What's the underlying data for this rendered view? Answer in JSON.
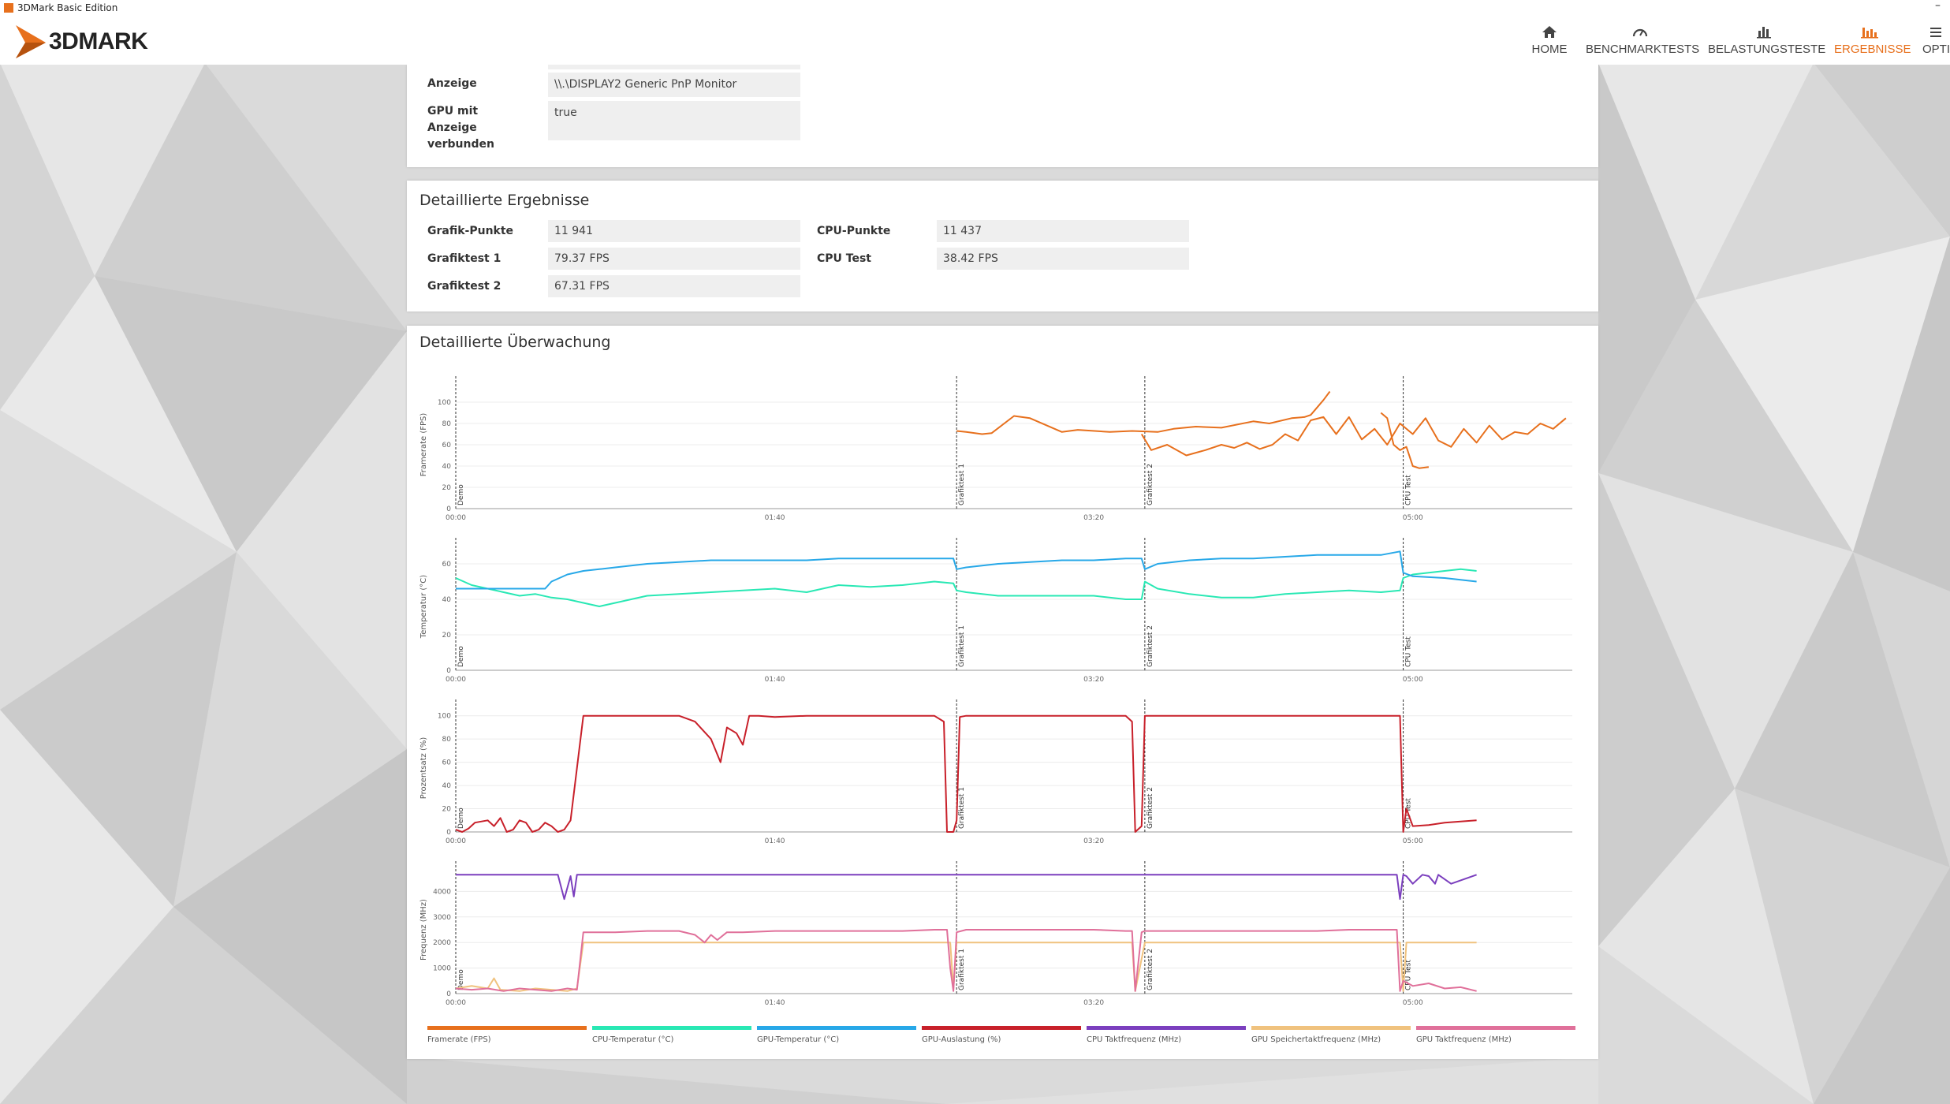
{
  "window": {
    "title": "3DMark Basic Edition",
    "minimize": "–"
  },
  "brand": {
    "name": "3DMARK"
  },
  "nav": [
    {
      "label": "HOME",
      "icon": "home-icon"
    },
    {
      "label": "BENCHMARKTESTS",
      "icon": "gauge-icon"
    },
    {
      "label": "BELASTUNGSTESTE",
      "icon": "bar-chart-icon"
    },
    {
      "label": "ERGEBNISSE",
      "icon": "results-chart-icon",
      "active": true
    },
    {
      "label": "OPTI",
      "icon": "options-icon"
    }
  ],
  "colors": {
    "accent": "#e7701d"
  },
  "display_info": {
    "rows": [
      {
        "label": "Anzeige",
        "value": "\\\\.\\DISPLAY2 Generic PnP Monitor"
      },
      {
        "label": "GPU mit Anzeige verbunden",
        "value": "true"
      }
    ]
  },
  "detailed_results": {
    "title": "Detaillierte Ergebnisse",
    "left": [
      {
        "label": "Grafik-Punkte",
        "value": "11 941"
      },
      {
        "label": "Grafiktest 1",
        "value": "79.37 FPS"
      },
      {
        "label": "Grafiktest 2",
        "value": "67.31 FPS"
      }
    ],
    "right": [
      {
        "label": "CPU-Punkte",
        "value": "11 437"
      },
      {
        "label": "CPU Test",
        "value": "38.42 FPS"
      }
    ]
  },
  "monitoring": {
    "title": "Detaillierte Überwachung",
    "x_ticks": [
      "00:00",
      "01:40",
      "03:20",
      "05:00"
    ],
    "markers": [
      "Demo",
      "Grafiktest 1",
      "Grafiktest 2",
      "CPU Test"
    ],
    "legend": [
      {
        "label": "Framerate (FPS)",
        "color": "#e7701d"
      },
      {
        "label": "CPU-Temperatur (°C)",
        "color": "#29e8b4"
      },
      {
        "label": "GPU-Temperatur (°C)",
        "color": "#27a8e8"
      },
      {
        "label": "GPU-Auslastung (%)",
        "color": "#c8202a"
      },
      {
        "label": "CPU Taktfrequenz (MHz)",
        "color": "#7b3fbe"
      },
      {
        "label": "GPU Speichertaktfrequenz (MHz)",
        "color": "#f0c27e"
      },
      {
        "label": "GPU Taktfrequenz (MHz)",
        "color": "#e0709a"
      }
    ]
  },
  "chart_data": [
    {
      "type": "line",
      "ylabel": "Framerate (FPS)",
      "ylim": [
        0,
        120
      ],
      "yticks": [
        0,
        20,
        40,
        60,
        80,
        100
      ],
      "xlim": [
        0,
        350
      ],
      "grid": true,
      "series": [
        {
          "name": "Framerate (FPS)",
          "color": "#e7701d",
          "x": [
            157,
            160,
            165,
            168,
            175,
            180,
            190,
            195,
            205,
            212,
            220,
            225,
            232,
            240,
            250,
            255,
            262,
            266,
            268,
            270,
            272,
            274
          ],
          "y": [
            73,
            72,
            70,
            71,
            87,
            85,
            72,
            74,
            72,
            73,
            72,
            75,
            77,
            76,
            82,
            80,
            85,
            86,
            88,
            95,
            102,
            110
          ]
        },
        {
          "name": "Framerate (FPS)",
          "color": "#e7701d",
          "x": [
            215,
            218,
            223,
            229,
            235,
            240,
            244,
            248,
            252,
            256,
            260,
            264,
            268,
            272,
            276,
            280,
            284,
            288,
            292,
            296,
            300,
            304,
            308,
            312,
            316,
            320,
            324,
            328,
            332,
            336,
            340,
            344,
            348
          ],
          "y": [
            70,
            55,
            60,
            50,
            55,
            60,
            57,
            62,
            56,
            60,
            70,
            64,
            83,
            86,
            70,
            86,
            65,
            75,
            60,
            80,
            70,
            85,
            64,
            58,
            75,
            62,
            78,
            65,
            72,
            70,
            80,
            75,
            85
          ]
        },
        {
          "name": "Framerate (FPS)",
          "color": "#e7701d",
          "x": [
            290,
            292,
            294,
            296,
            298,
            300,
            302,
            305
          ],
          "y": [
            90,
            85,
            60,
            55,
            58,
            40,
            38,
            39
          ]
        }
      ]
    },
    {
      "type": "line",
      "ylabel": "Temperatur (°C)",
      "ylim": [
        0,
        72
      ],
      "yticks": [
        0,
        20,
        40,
        60
      ],
      "xlim": [
        0,
        350
      ],
      "grid": true,
      "series": [
        {
          "name": "CPU-Temperatur (°C)",
          "color": "#29e8b4",
          "x": [
            0,
            5,
            10,
            15,
            20,
            25,
            30,
            35,
            40,
            45,
            50,
            55,
            60,
            70,
            80,
            90,
            100,
            110,
            120,
            130,
            140,
            150,
            156,
            157,
            160,
            170,
            180,
            190,
            200,
            210,
            215,
            216,
            220,
            230,
            240,
            250,
            260,
            270,
            280,
            290,
            296,
            297,
            300,
            305,
            310,
            315,
            320
          ],
          "y": [
            52,
            48,
            46,
            44,
            42,
            43,
            41,
            40,
            38,
            36,
            38,
            40,
            42,
            43,
            44,
            45,
            46,
            44,
            48,
            47,
            48,
            50,
            49,
            45,
            44,
            42,
            42,
            42,
            42,
            40,
            40,
            50,
            46,
            43,
            41,
            41,
            43,
            44,
            45,
            44,
            45,
            52,
            54,
            55,
            56,
            57,
            56
          ]
        },
        {
          "name": "GPU-Temperatur (°C)",
          "color": "#27a8e8",
          "x": [
            0,
            10,
            20,
            25,
            28,
            30,
            35,
            40,
            45,
            50,
            60,
            70,
            80,
            90,
            100,
            110,
            120,
            130,
            140,
            150,
            156,
            157,
            160,
            170,
            180,
            190,
            200,
            210,
            215,
            216,
            220,
            230,
            240,
            250,
            260,
            270,
            280,
            290,
            296,
            297,
            300,
            310,
            320
          ],
          "y": [
            46,
            46,
            46,
            46,
            46,
            50,
            54,
            56,
            57,
            58,
            60,
            61,
            62,
            62,
            62,
            62,
            63,
            63,
            63,
            63,
            63,
            57,
            58,
            60,
            61,
            62,
            62,
            63,
            63,
            57,
            60,
            62,
            63,
            63,
            64,
            65,
            65,
            65,
            67,
            55,
            53,
            52,
            50
          ]
        }
      ]
    },
    {
      "type": "line",
      "ylabel": "Prozentsatz (%)",
      "ylim": [
        0,
        110
      ],
      "yticks": [
        0,
        20,
        40,
        60,
        80,
        100
      ],
      "xlim": [
        0,
        350
      ],
      "grid": true,
      "series": [
        {
          "name": "GPU-Auslastung (%)",
          "color": "#c8202a",
          "x": [
            0,
            2,
            4,
            6,
            10,
            12,
            14,
            16,
            18,
            20,
            22,
            24,
            26,
            28,
            30,
            32,
            34,
            36,
            40,
            50,
            60,
            70,
            75,
            80,
            83,
            85,
            88,
            90,
            92,
            95,
            100,
            110,
            120,
            130,
            140,
            150,
            153,
            154,
            156,
            157,
            158,
            160,
            170,
            180,
            190,
            200,
            210,
            212,
            213,
            215,
            216,
            217,
            220,
            230,
            240,
            250,
            260,
            270,
            280,
            290,
            293,
            295,
            296,
            297,
            298,
            300,
            305,
            310,
            315,
            320
          ],
          "y": [
            2,
            0,
            3,
            8,
            10,
            5,
            12,
            0,
            2,
            10,
            8,
            0,
            2,
            8,
            5,
            0,
            2,
            10,
            100,
            100,
            100,
            100,
            95,
            80,
            60,
            90,
            85,
            75,
            100,
            100,
            99,
            100,
            100,
            100,
            100,
            100,
            95,
            0,
            0,
            10,
            99,
            100,
            100,
            100,
            100,
            100,
            100,
            95,
            0,
            5,
            100,
            100,
            100,
            100,
            100,
            100,
            100,
            100,
            100,
            100,
            100,
            100,
            100,
            0,
            20,
            5,
            6,
            8,
            9,
            10
          ]
        }
      ]
    },
    {
      "type": "line",
      "ylabel": "Frequenz (MHz)",
      "ylim": [
        0,
        5000
      ],
      "yticks": [
        0,
        1000,
        2000,
        3000,
        4000
      ],
      "xlim": [
        0,
        350
      ],
      "grid": true,
      "series": [
        {
          "name": "CPU Taktfrequenz (MHz)",
          "color": "#7b3fbe",
          "x": [
            0,
            20,
            32,
            34,
            36,
            37,
            38,
            40,
            60,
            100,
            156,
            158,
            200,
            215,
            217,
            260,
            290,
            295,
            296,
            297,
            298,
            300,
            303,
            305,
            307,
            308,
            312,
            320
          ],
          "y": [
            4650,
            4650,
            4650,
            3700,
            4600,
            3800,
            4650,
            4650,
            4650,
            4650,
            4650,
            4650,
            4650,
            4650,
            4650,
            4650,
            4650,
            4650,
            3700,
            4650,
            4600,
            4300,
            4650,
            4600,
            4300,
            4650,
            4300,
            4650
          ]
        },
        {
          "name": "GPU Speichertaktfrequenz (MHz)",
          "color": "#f0c27e",
          "x": [
            0,
            5,
            10,
            12,
            14,
            20,
            25,
            30,
            35,
            38,
            40,
            100,
            150,
            155,
            156,
            157,
            160,
            200,
            212,
            213,
            216,
            250,
            290,
            294,
            296,
            297,
            298,
            320
          ],
          "y": [
            200,
            300,
            200,
            600,
            150,
            100,
            200,
            150,
            100,
            200,
            2000,
            2000,
            2000,
            2000,
            200,
            2000,
            2000,
            2000,
            2000,
            100,
            2000,
            2000,
            2000,
            2000,
            2000,
            100,
            2000,
            2000
          ]
        },
        {
          "name": "GPU Taktfrequenz (MHz)",
          "color": "#e0709a",
          "x": [
            0,
            5,
            10,
            15,
            20,
            25,
            30,
            35,
            38,
            40,
            50,
            60,
            70,
            75,
            78,
            80,
            82,
            85,
            90,
            100,
            110,
            120,
            130,
            140,
            150,
            154,
            155,
            156,
            157,
            160,
            170,
            180,
            190,
            200,
            210,
            212,
            213,
            215,
            216,
            220,
            230,
            240,
            250,
            260,
            270,
            280,
            290,
            294,
            295,
            296,
            297,
            300,
            305,
            310,
            315,
            320
          ],
          "y": [
            200,
            150,
            200,
            100,
            200,
            150,
            100,
            200,
            150,
            2400,
            2400,
            2450,
            2450,
            2300,
            2000,
            2300,
            2100,
            2400,
            2400,
            2450,
            2450,
            2450,
            2450,
            2450,
            2500,
            2500,
            1000,
            100,
            2400,
            2500,
            2500,
            2500,
            2500,
            2500,
            2450,
            2450,
            100,
            2400,
            2450,
            2450,
            2450,
            2450,
            2450,
            2450,
            2450,
            2500,
            2500,
            2500,
            2500,
            100,
            500,
            300,
            400,
            200,
            250,
            100
          ]
        }
      ]
    }
  ]
}
